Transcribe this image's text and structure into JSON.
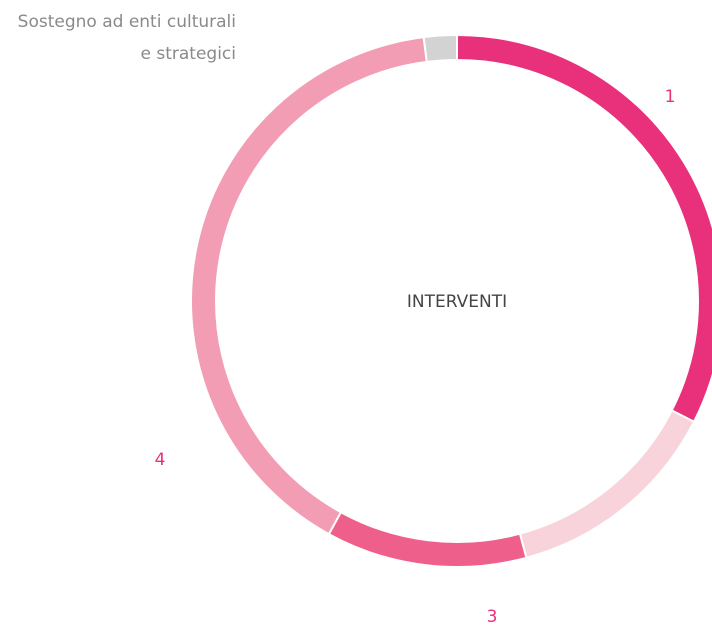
{
  "chart_data": {
    "type": "donut",
    "center_label": "INTERVENTI",
    "categories": [
      "1",
      null,
      "3",
      "4",
      "Sostegno ad enti culturali e strategici"
    ],
    "values": [
      32.5,
      13.3,
      12.2,
      40,
      2
    ],
    "colors": [
      "#e8317a",
      "#f8d3dc",
      "#ee5f8b",
      "#f29db4",
      "#d3d3d3"
    ],
    "label_colors": [
      "#e8317a",
      "#e8317a",
      "#e8317a",
      "#e8317a",
      "#8a8a8a"
    ]
  }
}
